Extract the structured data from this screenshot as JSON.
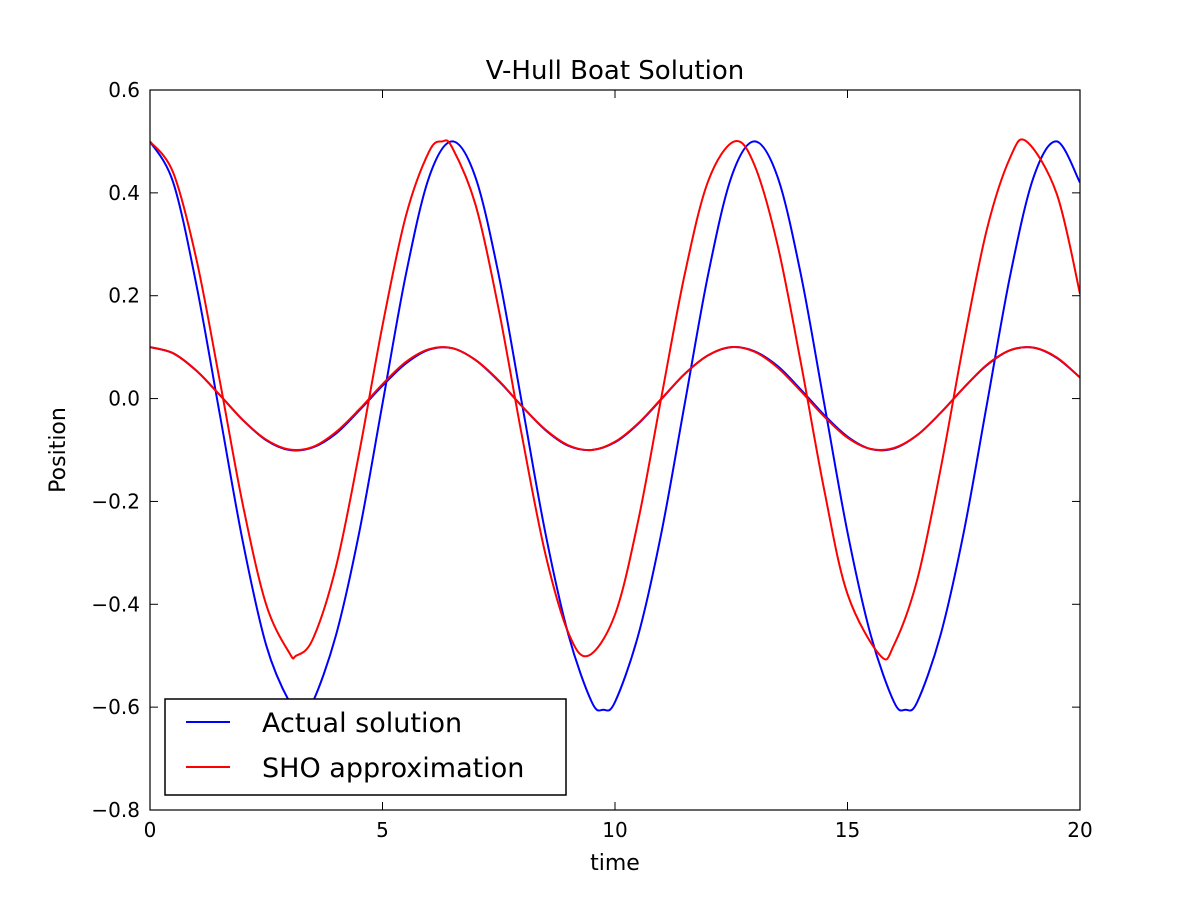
{
  "chart_data": {
    "type": "line",
    "title": "V-Hull Boat Solution",
    "xlabel": "time",
    "ylabel": "Position",
    "xlim": [
      0,
      20
    ],
    "ylim": [
      -0.8,
      0.6
    ],
    "xticks": [
      0,
      5,
      10,
      15,
      20
    ],
    "xtick_labels": [
      "0",
      "5",
      "10",
      "15",
      "20"
    ],
    "yticks": [
      -0.8,
      -0.6,
      -0.4,
      -0.2,
      0.0,
      0.2,
      0.4,
      0.6
    ],
    "ytick_labels": [
      "−0.8",
      "−0.6",
      "−0.4",
      "−0.2",
      "0.0",
      "0.2",
      "0.4",
      "0.6"
    ],
    "grid": false,
    "legend_position": "lower-left",
    "legend": [
      "Actual solution",
      "SHO approximation"
    ],
    "series": [
      {
        "name": "Actual solution",
        "color": "#0000ff",
        "runs": [
          {
            "x": [
              0,
              0.5,
              1,
              1.5,
              2,
              2.5,
              3,
              3.25,
              3.5,
              4,
              4.5,
              5,
              5.5,
              6,
              6.5,
              7,
              7.5,
              8,
              8.5,
              9,
              9.5,
              9.75,
              10,
              10.5,
              11,
              11.5,
              12,
              12.5,
              13,
              13.5,
              14,
              14.5,
              15,
              15.5,
              16,
              16.25,
              16.5,
              17,
              17.5,
              18,
              18.5,
              19,
              19.5,
              20
            ],
            "y": [
              0.5,
              0.42,
              0.22,
              -0.03,
              -0.28,
              -0.48,
              -0.59,
              -0.605,
              -0.59,
              -0.46,
              -0.26,
              -0.01,
              0.24,
              0.43,
              0.5,
              0.43,
              0.24,
              -0.01,
              -0.26,
              -0.46,
              -0.59,
              -0.605,
              -0.59,
              -0.46,
              -0.26,
              -0.01,
              0.24,
              0.43,
              0.5,
              0.43,
              0.24,
              -0.01,
              -0.26,
              -0.46,
              -0.59,
              -0.605,
              -0.59,
              -0.46,
              -0.26,
              -0.01,
              0.24,
              0.43,
              0.5,
              0.42
            ]
          },
          {
            "x": [
              0,
              0.5,
              1,
              1.5,
              2,
              2.5,
              3,
              3.5,
              4,
              4.5,
              5,
              5.5,
              6,
              6.5,
              7,
              7.5,
              8,
              8.5,
              9,
              9.5,
              10,
              10.5,
              11,
              11.5,
              12,
              12.5,
              13,
              13.5,
              14,
              14.5,
              15,
              15.5,
              16,
              16.5,
              17,
              17.5,
              18,
              18.5,
              19,
              19.5,
              20
            ],
            "y": [
              0.1,
              0.088,
              0.054,
              0.007,
              -0.042,
              -0.081,
              -0.1,
              -0.095,
              -0.068,
              -0.023,
              0.025,
              0.068,
              0.095,
              0.098,
              0.075,
              0.034,
              -0.015,
              -0.061,
              -0.092,
              -0.1,
              -0.085,
              -0.049,
              -0.001,
              0.048,
              0.084,
              0.1,
              0.092,
              0.063,
              0.017,
              -0.032,
              -0.074,
              -0.098,
              -0.097,
              -0.071,
              -0.028,
              0.021,
              0.065,
              0.094,
              0.099,
              0.079,
              0.041
            ]
          }
        ]
      },
      {
        "name": "SHO approximation",
        "color": "#ff0000",
        "runs": [
          {
            "x": [
              0,
              0.5,
              1,
              1.5,
              2,
              2.5,
              3,
              3.1416,
              3.5,
              4,
              4.5,
              5,
              5.5,
              6,
              6.2832,
              6.5,
              7,
              7.5,
              8,
              8.5,
              9,
              9.4248,
              10,
              10.5,
              11,
              11.5,
              12,
              12.5664,
              13,
              13.5,
              14,
              14.5,
              15,
              15.708,
              16,
              16.5,
              17,
              17.5,
              18,
              18.5,
              18.8496,
              19.5,
              20
            ],
            "y": [
              0.5,
              0.439,
              0.27,
              0.035,
              -0.208,
              -0.401,
              -0.495,
              -0.5,
              -0.468,
              -0.327,
              -0.105,
              0.142,
              0.354,
              0.48,
              0.5,
              0.488,
              0.377,
              0.173,
              -0.073,
              -0.301,
              -0.456,
              -0.5,
              -0.42,
              -0.237,
              0.004,
              0.242,
              0.422,
              0.5,
              0.454,
              0.297,
              0.068,
              -0.178,
              -0.38,
              -0.5,
              -0.479,
              -0.352,
              -0.138,
              0.109,
              0.33,
              0.469,
              0.5,
              0.398,
              0.204
            ]
          },
          {
            "x": [
              0,
              0.5,
              1,
              1.5,
              2,
              2.5,
              3,
              3.5,
              4,
              4.5,
              5,
              5.5,
              6,
              6.5,
              7,
              7.5,
              8,
              8.5,
              9,
              9.5,
              10,
              10.5,
              11,
              11.5,
              12,
              12.5,
              13,
              13.5,
              14,
              14.5,
              15,
              15.5,
              16,
              16.5,
              17,
              17.5,
              18,
              18.5,
              19,
              19.5,
              20
            ],
            "y": [
              0.1,
              0.088,
              0.054,
              0.007,
              -0.042,
              -0.08,
              -0.099,
              -0.094,
              -0.065,
              -0.021,
              0.028,
              0.071,
              0.096,
              0.098,
              0.075,
              0.035,
              -0.015,
              -0.06,
              -0.091,
              -0.1,
              -0.084,
              -0.048,
              0.0,
              0.048,
              0.084,
              0.1,
              0.091,
              0.06,
              0.014,
              -0.035,
              -0.076,
              -0.098,
              -0.096,
              -0.071,
              -0.028,
              0.021,
              0.066,
              0.094,
              0.099,
              0.08,
              0.041
            ]
          }
        ]
      }
    ]
  }
}
